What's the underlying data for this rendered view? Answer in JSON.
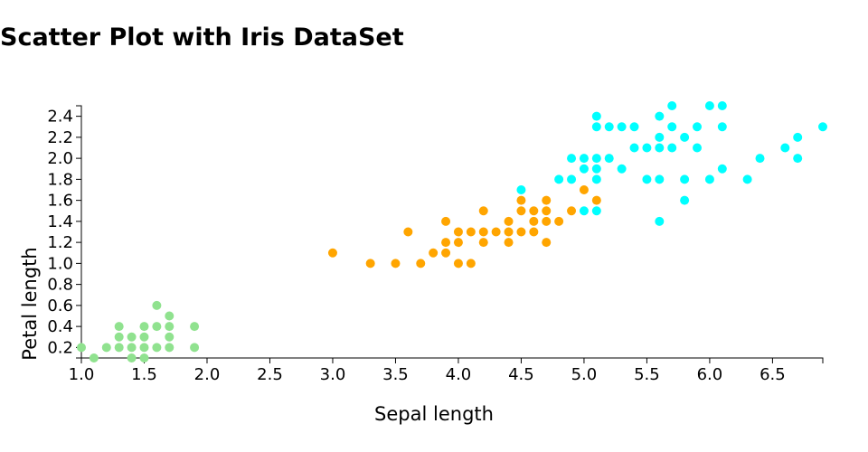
{
  "title": "Scatter Plot with Iris DataSet",
  "chart_data": {
    "type": "scatter",
    "xlabel": "Sepal length",
    "ylabel": "Petal length",
    "xlim": [
      1.0,
      6.9
    ],
    "ylim": [
      0.1,
      2.5
    ],
    "grid": false,
    "x_ticks": [
      "1.0",
      "1.5",
      "2.0",
      "2.5",
      "3.0",
      "3.5",
      "4.0",
      "4.5",
      "5.0",
      "5.5",
      "6.0",
      "6.5"
    ],
    "y_ticks": [
      "0.2",
      "0.4",
      "0.6",
      "0.8",
      "1.0",
      "1.2",
      "1.4",
      "1.6",
      "1.8",
      "2.0",
      "2.2",
      "2.4"
    ],
    "series": [
      {
        "color": "#90e28f",
        "points": [
          [
            1.0,
            0.2
          ],
          [
            1.1,
            0.1
          ],
          [
            1.2,
            0.2
          ],
          [
            1.3,
            0.2
          ],
          [
            1.3,
            0.3
          ],
          [
            1.3,
            0.4
          ],
          [
            1.4,
            0.1
          ],
          [
            1.4,
            0.2
          ],
          [
            1.4,
            0.3
          ],
          [
            1.5,
            0.1
          ],
          [
            1.5,
            0.2
          ],
          [
            1.5,
            0.3
          ],
          [
            1.5,
            0.4
          ],
          [
            1.6,
            0.2
          ],
          [
            1.6,
            0.4
          ],
          [
            1.6,
            0.6
          ],
          [
            1.7,
            0.2
          ],
          [
            1.7,
            0.3
          ],
          [
            1.7,
            0.4
          ],
          [
            1.7,
            0.5
          ],
          [
            1.9,
            0.2
          ],
          [
            1.9,
            0.4
          ]
        ]
      },
      {
        "color": "#ffa500",
        "points": [
          [
            3.0,
            1.1
          ],
          [
            3.3,
            1.0
          ],
          [
            3.5,
            1.0
          ],
          [
            3.6,
            1.3
          ],
          [
            3.7,
            1.0
          ],
          [
            3.8,
            1.1
          ],
          [
            3.9,
            1.1
          ],
          [
            3.9,
            1.2
          ],
          [
            3.9,
            1.4
          ],
          [
            4.0,
            1.0
          ],
          [
            4.0,
            1.2
          ],
          [
            4.0,
            1.3
          ],
          [
            4.1,
            1.0
          ],
          [
            4.1,
            1.3
          ],
          [
            4.2,
            1.2
          ],
          [
            4.2,
            1.3
          ],
          [
            4.2,
            1.5
          ],
          [
            4.3,
            1.3
          ],
          [
            4.4,
            1.2
          ],
          [
            4.4,
            1.3
          ],
          [
            4.4,
            1.4
          ],
          [
            4.5,
            1.3
          ],
          [
            4.5,
            1.5
          ],
          [
            4.5,
            1.6
          ],
          [
            4.6,
            1.3
          ],
          [
            4.6,
            1.4
          ],
          [
            4.6,
            1.5
          ],
          [
            4.7,
            1.2
          ],
          [
            4.7,
            1.4
          ],
          [
            4.7,
            1.5
          ],
          [
            4.7,
            1.6
          ],
          [
            4.8,
            1.4
          ],
          [
            4.9,
            1.5
          ],
          [
            5.0,
            1.7
          ],
          [
            5.1,
            1.6
          ]
        ]
      },
      {
        "color": "#00ffff",
        "points": [
          [
            4.5,
            1.7
          ],
          [
            4.8,
            1.8
          ],
          [
            4.9,
            1.8
          ],
          [
            4.9,
            2.0
          ],
          [
            5.0,
            1.5
          ],
          [
            5.0,
            1.9
          ],
          [
            5.0,
            2.0
          ],
          [
            5.1,
            1.5
          ],
          [
            5.1,
            1.8
          ],
          [
            5.1,
            1.9
          ],
          [
            5.1,
            2.0
          ],
          [
            5.1,
            2.3
          ],
          [
            5.1,
            2.4
          ],
          [
            5.2,
            2.0
          ],
          [
            5.2,
            2.3
          ],
          [
            5.3,
            1.9
          ],
          [
            5.3,
            2.3
          ],
          [
            5.4,
            2.1
          ],
          [
            5.4,
            2.3
          ],
          [
            5.5,
            1.8
          ],
          [
            5.5,
            2.1
          ],
          [
            5.6,
            1.4
          ],
          [
            5.6,
            1.8
          ],
          [
            5.6,
            2.1
          ],
          [
            5.6,
            2.2
          ],
          [
            5.6,
            2.4
          ],
          [
            5.7,
            2.1
          ],
          [
            5.7,
            2.3
          ],
          [
            5.7,
            2.5
          ],
          [
            5.8,
            1.6
          ],
          [
            5.8,
            1.8
          ],
          [
            5.8,
            2.2
          ],
          [
            5.9,
            2.1
          ],
          [
            5.9,
            2.3
          ],
          [
            6.0,
            1.8
          ],
          [
            6.0,
            2.5
          ],
          [
            6.1,
            1.9
          ],
          [
            6.1,
            2.3
          ],
          [
            6.1,
            2.5
          ],
          [
            6.3,
            1.8
          ],
          [
            6.4,
            2.0
          ],
          [
            6.6,
            2.1
          ],
          [
            6.7,
            2.0
          ],
          [
            6.7,
            2.2
          ],
          [
            6.9,
            2.3
          ]
        ]
      }
    ]
  }
}
